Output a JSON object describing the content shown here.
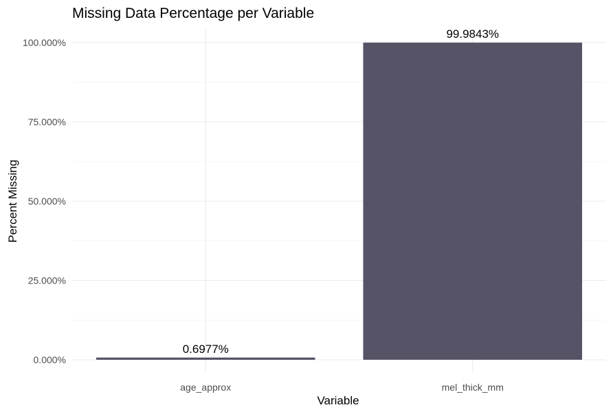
{
  "chart_data": {
    "type": "bar",
    "title": "Missing Data Percentage per Variable",
    "xlabel": "Variable",
    "ylabel": "Percent Missing",
    "categories": [
      "age_approx",
      "mel_thick_mm"
    ],
    "values": [
      0.6977,
      99.9843
    ],
    "data_labels": [
      "0.6977%",
      "99.9843%"
    ],
    "ylim": [
      0,
      100
    ],
    "y_ticks": [
      0,
      25,
      50,
      75,
      100
    ],
    "y_tick_labels": [
      "0.000%",
      "25.000%",
      "50.000%",
      "75.000%",
      "100.000%"
    ],
    "grid": true,
    "legend": "none",
    "bar_color": "#575366"
  }
}
